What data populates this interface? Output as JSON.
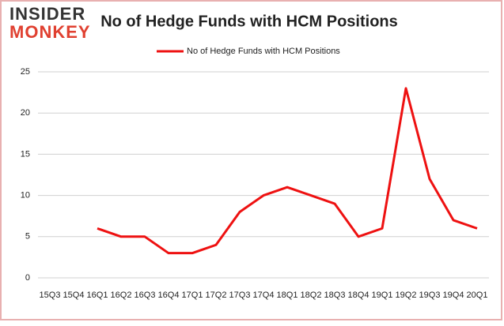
{
  "logo": {
    "line1": "INSIDER",
    "line2": "MONKEY"
  },
  "chart_data": {
    "type": "line",
    "title": "No of Hedge Funds with HCM Positions",
    "categories": [
      "15Q3",
      "15Q4",
      "16Q1",
      "16Q2",
      "16Q3",
      "16Q4",
      "17Q1",
      "17Q2",
      "17Q3",
      "17Q4",
      "18Q1",
      "18Q2",
      "18Q3",
      "18Q4",
      "19Q1",
      "19Q2",
      "19Q3",
      "19Q4",
      "20Q1"
    ],
    "series": [
      {
        "name": "No of Hedge Funds with HCM Positions",
        "color": "#ee1111",
        "values": [
          null,
          null,
          6,
          5,
          5,
          3,
          3,
          4,
          8,
          10,
          11,
          10,
          9,
          5,
          6,
          23,
          12,
          7,
          6
        ]
      }
    ],
    "ylim": [
      0,
      25
    ],
    "yticks": [
      0,
      5,
      10,
      15,
      20,
      25
    ],
    "grid": true,
    "legend": "top"
  }
}
